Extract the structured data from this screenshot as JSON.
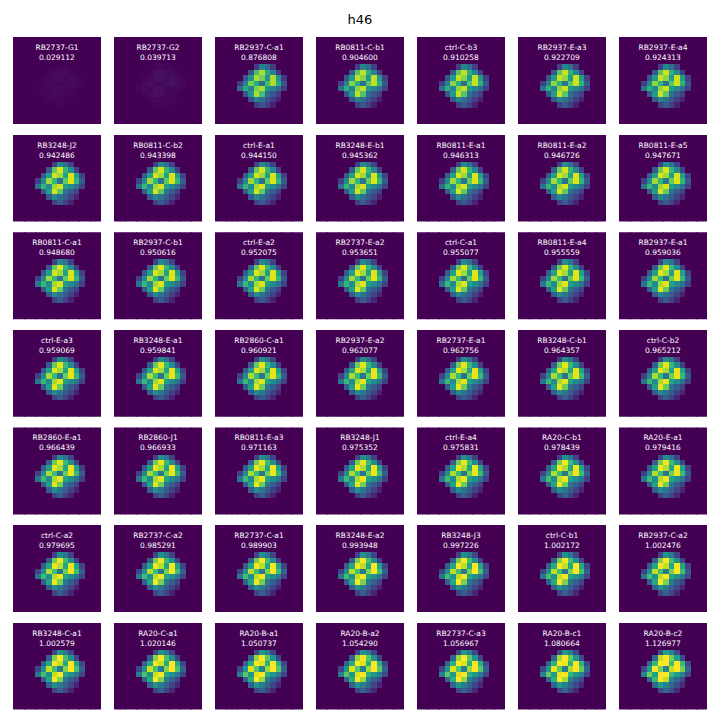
{
  "chart_data": {
    "type": "image_grid",
    "title": "h46",
    "labels": [
      "RB2737-G1",
      "RB2737-G2",
      "RB2937-C-a1",
      "RB0811-C-b1",
      "ctrl-C-b3",
      "RB2937-E-a3",
      "RB2937-E-a4",
      "RB3248-J2",
      "RB0811-C-b2",
      "ctrl-E-a1",
      "RB3248-E-b1",
      "RB0811-E-a1",
      "RB0811-E-a2",
      "RB0811-E-a5",
      "RB0811-C-a1",
      "RB2937-C-b1",
      "ctrl-E-a2",
      "RB2737-E-a2",
      "ctrl-C-a1",
      "RB0811-E-a4",
      "RB2937-E-a1",
      "ctrl-E-a3",
      "RB3248-E-a1",
      "RB2860-C-a1",
      "RB2937-E-a2",
      "RB2737-E-a1",
      "RB3248-C-b1",
      "ctrl-C-b2",
      "RB2860-E-a1",
      "RB2860-J1",
      "RB0811-E-a3",
      "RB3248-J1",
      "ctrl-E-a4",
      "RA20-C-b1",
      "RA20-E-a1",
      "ctrl-C-a2",
      "RB2737-C-a2",
      "RB2737-C-a1",
      "RB3248-E-a2",
      "RB3248-J3",
      "ctrl-C-b1",
      "RB2937-C-a2",
      "RB3248-C-a1",
      "RA20-C-a1",
      "RA20-B-a1",
      "RA20-B-a2",
      "RB2737-C-a3",
      "RA20-B-c1",
      "RA20-B-c2"
    ],
    "values": [
      0.029112,
      0.039713,
      0.876808,
      0.9046,
      0.910258,
      0.922709,
      0.924313,
      0.942486,
      0.943398,
      0.94415,
      0.945362,
      0.946313,
      0.946726,
      0.947671,
      0.94868,
      0.950616,
      0.952075,
      0.953651,
      0.955077,
      0.955559,
      0.959036,
      0.959069,
      0.959841,
      0.960921,
      0.962077,
      0.962756,
      0.964357,
      0.965212,
      0.966439,
      0.966933,
      0.971163,
      0.975352,
      0.975831,
      0.978439,
      0.979416,
      0.979695,
      0.985291,
      0.989903,
      0.993948,
      0.997226,
      1.002172,
      1.002476,
      1.002579,
      1.020146,
      1.050737,
      1.05429,
      1.056967,
      1.080664,
      1.126977
    ],
    "value_labels": [
      "0.029112",
      "0.039713",
      "0.876808",
      "0.904600",
      "0.910258",
      "0.922709",
      "0.924313",
      "0.942486",
      "0.943398",
      "0.944150",
      "0.945362",
      "0.946313",
      "0.946726",
      "0.947671",
      "0.948680",
      "0.950616",
      "0.952075",
      "0.953651",
      "0.955077",
      "0.955559",
      "0.959036",
      "0.959069",
      "0.959841",
      "0.960921",
      "0.962077",
      "0.962756",
      "0.964357",
      "0.965212",
      "0.966439",
      "0.966933",
      "0.971163",
      "0.975352",
      "0.975831",
      "0.978439",
      "0.979416",
      "0.979695",
      "0.985291",
      "0.989903",
      "0.993948",
      "0.997226",
      "1.002172",
      "1.002476",
      "1.002579",
      "1.020146",
      "1.050737",
      "1.054290",
      "1.056967",
      "1.080664",
      "1.126977"
    ],
    "image": [
      [
        0,
        0,
        0,
        0,
        0,
        0,
        0,
        0,
        0,
        0,
        0,
        0,
        0,
        0,
        0,
        0
      ],
      [
        0,
        0,
        0,
        0,
        0,
        0,
        0,
        0,
        0,
        0,
        0,
        0,
        0,
        0,
        0,
        0
      ],
      [
        0,
        0,
        0,
        0,
        0,
        0,
        0,
        0,
        0,
        0,
        0,
        0,
        0,
        0,
        0,
        0
      ],
      [
        0,
        0,
        0,
        0,
        0,
        0,
        0,
        0,
        0,
        0,
        0,
        0,
        0,
        0,
        0,
        0
      ],
      [
        0,
        0,
        0,
        0,
        0,
        0,
        0,
        0,
        0,
        0,
        0,
        0,
        0,
        0,
        0,
        0
      ],
      [
        0,
        0,
        0,
        0,
        0,
        0,
        0,
        0.2,
        0.5,
        0.4,
        0.2,
        0,
        0,
        0,
        0,
        0
      ],
      [
        0,
        0,
        0,
        0,
        0,
        0,
        0.3,
        0.8,
        1.0,
        0.7,
        0.5,
        0.2,
        0,
        0,
        0,
        0
      ],
      [
        0,
        0,
        0,
        0,
        0,
        0.3,
        0.6,
        1.0,
        0.9,
        0.6,
        1.0,
        0.6,
        0.2,
        0,
        0,
        0
      ],
      [
        0,
        0,
        0,
        0,
        0.2,
        0.5,
        0.9,
        0.7,
        0.4,
        0.8,
        1.0,
        0.7,
        0.3,
        0,
        0,
        0
      ],
      [
        0,
        0,
        0,
        0,
        0.4,
        0.7,
        0.5,
        0.9,
        1.0,
        0.6,
        0.5,
        0.4,
        0.2,
        0,
        0,
        0
      ],
      [
        0,
        0,
        0,
        0,
        0,
        0.3,
        0.6,
        1.0,
        0.8,
        0.4,
        0.3,
        0.2,
        0,
        0,
        0,
        0
      ],
      [
        0,
        0,
        0,
        0,
        0,
        0,
        0.3,
        0.5,
        0.4,
        0.3,
        0.2,
        0.1,
        0,
        0,
        0,
        0
      ],
      [
        0,
        0,
        0,
        0,
        0,
        0,
        0,
        0.2,
        0.3,
        0.2,
        0.1,
        0,
        0,
        0,
        0,
        0
      ],
      [
        0,
        0,
        0,
        0,
        0,
        0,
        0,
        0,
        0,
        0,
        0,
        0,
        0,
        0,
        0,
        0
      ],
      [
        0,
        0,
        0,
        0,
        0,
        0,
        0,
        0,
        0,
        0,
        0,
        0,
        0,
        0,
        0,
        0
      ],
      [
        0,
        0,
        0,
        0,
        0,
        0,
        0,
        0,
        0,
        0,
        0,
        0,
        0,
        0,
        0,
        0
      ]
    ],
    "clim": [
      0,
      1
    ]
  }
}
